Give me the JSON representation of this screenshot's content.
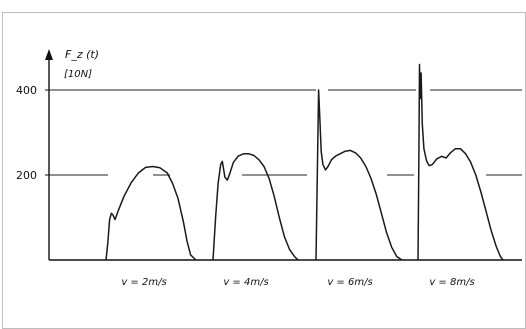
{
  "chart_data": {
    "type": "line",
    "ylabel": "F_z (t)",
    "yunit": "[10N]",
    "yticks": [
      200,
      400
    ],
    "ylim": [
      0,
      470
    ],
    "reference_lines": [
      200,
      400
    ],
    "grid": false,
    "series": [
      {
        "label": "v = 2m/s",
        "x": [
          0.0,
          0.02,
          0.04,
          0.06,
          0.08,
          0.1,
          0.14,
          0.2,
          0.28,
          0.36,
          0.44,
          0.52,
          0.6,
          0.68,
          0.74,
          0.8,
          0.86,
          0.9,
          0.94,
          1.0
        ],
        "values": [
          0,
          40,
          95,
          110,
          105,
          95,
          118,
          150,
          182,
          205,
          218,
          220,
          217,
          205,
          180,
          145,
          90,
          45,
          12,
          0
        ]
      },
      {
        "label": "v = 4m/s",
        "x": [
          0.0,
          0.03,
          0.06,
          0.09,
          0.11,
          0.14,
          0.17,
          0.2,
          0.24,
          0.3,
          0.36,
          0.42,
          0.48,
          0.54,
          0.6,
          0.66,
          0.72,
          0.78,
          0.84,
          0.9,
          0.96,
          1.0
        ],
        "values": [
          0,
          100,
          180,
          225,
          232,
          195,
          188,
          205,
          230,
          245,
          250,
          250,
          246,
          236,
          220,
          192,
          150,
          100,
          55,
          25,
          8,
          0
        ]
      },
      {
        "label": "v = 6m/s",
        "x": [
          0.0,
          0.015,
          0.03,
          0.045,
          0.06,
          0.08,
          0.11,
          0.14,
          0.18,
          0.23,
          0.28,
          0.34,
          0.4,
          0.46,
          0.52,
          0.58,
          0.64,
          0.7,
          0.76,
          0.82,
          0.88,
          0.94,
          1.0
        ],
        "values": [
          0,
          200,
          400,
          330,
          255,
          225,
          212,
          220,
          236,
          245,
          250,
          256,
          258,
          252,
          240,
          220,
          192,
          155,
          110,
          65,
          30,
          8,
          0
        ]
      },
      {
        "label": "v = 8m/s",
        "x": [
          0.0,
          0.01,
          0.018,
          0.026,
          0.036,
          0.05,
          0.07,
          0.1,
          0.13,
          0.17,
          0.22,
          0.28,
          0.33,
          0.38,
          0.44,
          0.5,
          0.56,
          0.62,
          0.68,
          0.74,
          0.8,
          0.86,
          0.92,
          0.97,
          1.0
        ],
        "values": [
          0,
          250,
          460,
          380,
          440,
          320,
          262,
          234,
          222,
          225,
          238,
          244,
          240,
          252,
          262,
          262,
          250,
          230,
          200,
          160,
          115,
          70,
          32,
          8,
          0
        ]
      }
    ]
  }
}
